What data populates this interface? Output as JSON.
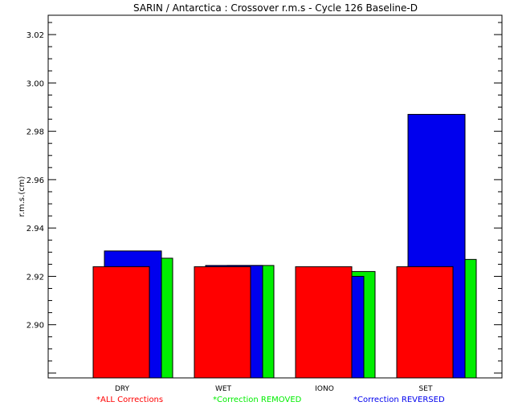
{
  "chart_data": {
    "type": "bar",
    "title": "SARIN / Antarctica : Crossover r.m.s - Cycle 126 Baseline-D",
    "ylabel": "r.m.s.(cm)",
    "xlabel": "",
    "ylim": [
      2.878,
      3.028
    ],
    "yticks": [
      "2.90",
      "2.92",
      "2.94",
      "2.96",
      "2.98",
      "3.00",
      "3.02"
    ],
    "categories": [
      "DRY",
      "WET",
      "IONO",
      "SET"
    ],
    "series": [
      {
        "name": "ALL Corrections",
        "color": "#ff0000",
        "values": [
          2.924,
          2.924,
          2.924,
          2.924
        ]
      },
      {
        "name": "Correction REMOVED",
        "color": "#00ee00",
        "values": [
          2.9275,
          2.9245,
          2.922,
          2.927
        ]
      },
      {
        "name": "Correction REVERSED",
        "color": "#0000ee",
        "values": [
          2.9305,
          2.9245,
          2.92,
          2.987
        ]
      }
    ],
    "legend": {
      "placement": "bottom",
      "marker": "*",
      "labels": [
        "ALL Corrections",
        "Correction REMOVED",
        "Correction REVERSED"
      ]
    },
    "grid": false
  }
}
